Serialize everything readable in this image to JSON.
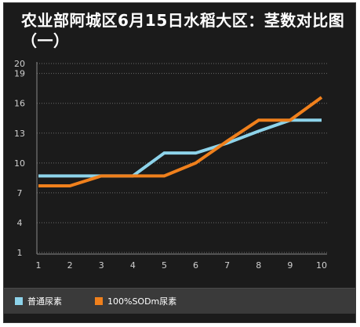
{
  "title": "农业部阿城区6月15日水稻大区：茎数对比图（一）",
  "chart_data": {
    "type": "line",
    "title": "农业部阿城区6月15日水稻大区：茎数对比图（一）",
    "xlabel": "",
    "ylabel": "",
    "x": [
      1,
      2,
      3,
      4,
      5,
      6,
      7,
      8,
      9,
      10
    ],
    "y_ticks": [
      1,
      4,
      7,
      10,
      13,
      16,
      19,
      20
    ],
    "ylim": [
      1,
      20
    ],
    "grid": true,
    "legend_position": "bottom",
    "series": [
      {
        "name": "普通尿素",
        "color": "#8dd3ea",
        "values": [
          8.7,
          8.7,
          8.7,
          8.7,
          11,
          11,
          12,
          13.2,
          14.3,
          14.3
        ]
      },
      {
        "name": "100%SODm尿素",
        "color": "#f0801c",
        "values": [
          7.7,
          7.7,
          8.7,
          8.7,
          8.7,
          10,
          12.2,
          14.3,
          14.3,
          16.6
        ]
      }
    ]
  }
}
